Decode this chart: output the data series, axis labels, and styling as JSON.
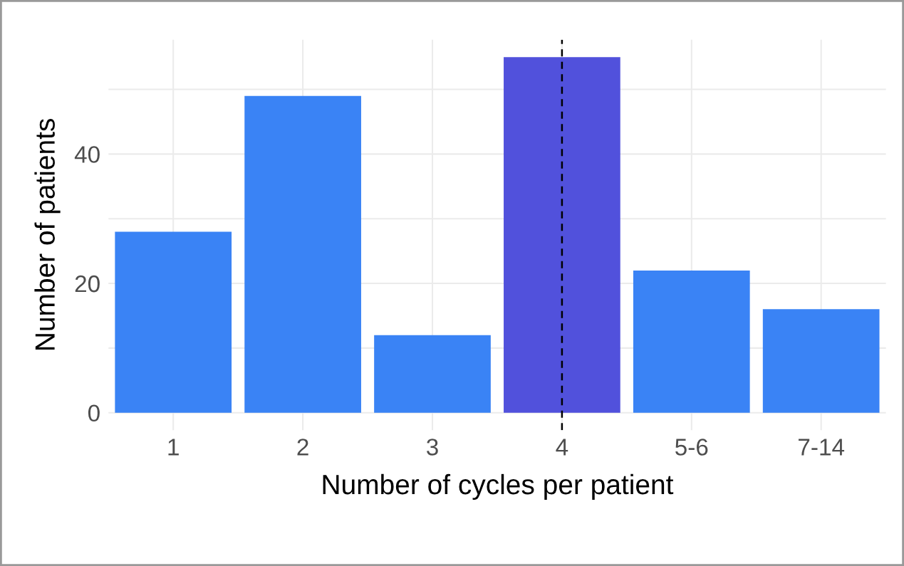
{
  "chart_data": {
    "type": "bar",
    "xlabel": "Number of cycles per patient",
    "ylabel": "Number of patients",
    "categories": [
      "1",
      "2",
      "3",
      "4",
      "5-6",
      "7-14"
    ],
    "values": [
      28,
      49,
      12,
      55,
      22,
      16
    ],
    "colors": [
      "#3a83f5",
      "#3a83f5",
      "#3a83f5",
      "#5151dc",
      "#3a83f5",
      "#3a83f5"
    ],
    "ylim": [
      -2.7,
      57.7
    ],
    "yticks": [
      0,
      {
        "value": 10,
        "label": null
      },
      20,
      {
        "value": 30,
        "label": null
      },
      40,
      {
        "value": 50,
        "label": null
      }
    ],
    "grid": true,
    "ref_lines": [
      {
        "axis": "x",
        "value": "4",
        "color": "#000000",
        "line_style": "dashed"
      }
    ]
  }
}
